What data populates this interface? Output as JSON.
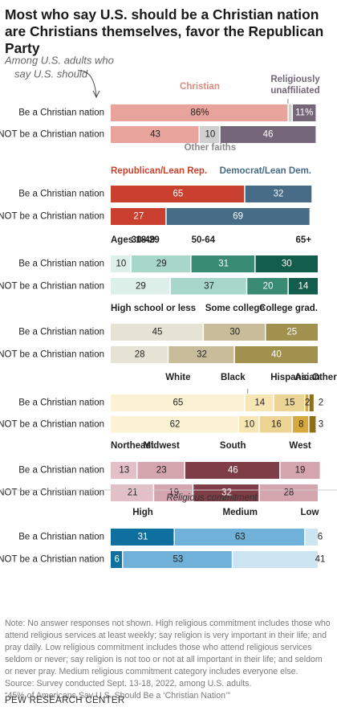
{
  "title": "Most who say U.S. should be a Christian nation are Christians themselves, favor the Republican Party",
  "chart_data": {
    "type": "bar",
    "orientation": "horizontal",
    "stacked": true,
    "units": "percent",
    "annotation": "Among U.S. adults who say U.S. should",
    "categories": [
      "Be a Christian nation",
      "NOT be a Christian nation"
    ],
    "panels": [
      {
        "id": "religion",
        "series": [
          {
            "name": "Christian",
            "color": "#e8a49c",
            "values": [
              86,
              43
            ]
          },
          {
            "name": "Other faiths",
            "color": "#cfcfcf",
            "values": [
              2,
              10
            ]
          },
          {
            "name": "Religiously unaffiliated",
            "color": "#756779",
            "values": [
              11,
              46
            ]
          }
        ]
      },
      {
        "id": "party",
        "series": [
          {
            "name": "Republican/Lean Rep.",
            "color": "#c9412e",
            "values": [
              65,
              27
            ]
          },
          {
            "name": "Democrat/Lean Dem.",
            "color": "#476c88",
            "values": [
              32,
              69
            ]
          }
        ]
      },
      {
        "id": "age",
        "series": [
          {
            "name": "Ages 18-29",
            "color": "#dcefe9",
            "values": [
              10,
              29
            ]
          },
          {
            "name": "30-49",
            "color": "#a6d7c9",
            "values": [
              29,
              37
            ]
          },
          {
            "name": "50-64",
            "color": "#3a8b74",
            "values": [
              31,
              20
            ]
          },
          {
            "name": "65+",
            "color": "#125d4c",
            "values": [
              30,
              14
            ]
          }
        ]
      },
      {
        "id": "education",
        "series": [
          {
            "name": "High school or less",
            "color": "#e6e2d4",
            "values": [
              45,
              28
            ]
          },
          {
            "name": "Some college",
            "color": "#c9bc9a",
            "values": [
              30,
              32
            ]
          },
          {
            "name": "College grad.",
            "color": "#a0924e",
            "values": [
              25,
              40
            ]
          }
        ]
      },
      {
        "id": "race",
        "series": [
          {
            "name": "White",
            "color": "#fbf1d3",
            "values": [
              65,
              62
            ]
          },
          {
            "name": "Black",
            "color": "#f7e6b4",
            "values": [
              14,
              10
            ]
          },
          {
            "name": "Hispanic",
            "color": "#ecd594",
            "values": [
              15,
              16
            ]
          },
          {
            "name": "Asian",
            "color": "#d7a93b",
            "values": [
              2,
              8
            ]
          },
          {
            "name": "Other",
            "color": "#8f6f1c",
            "values": [
              2,
              3
            ]
          }
        ]
      },
      {
        "id": "region",
        "series": [
          {
            "name": "Northeast",
            "color": "#e3c0c7",
            "values": [
              13,
              21
            ]
          },
          {
            "name": "Midwest",
            "color": "#d5a5ad",
            "values": [
              23,
              19
            ]
          },
          {
            "name": "South",
            "color": "#7f3d47",
            "values": [
              46,
              32
            ]
          },
          {
            "name": "West",
            "color": "#d5a5ad",
            "values": [
              19,
              28
            ]
          }
        ]
      },
      {
        "id": "commitment",
        "title": "Religious commitment",
        "series": [
          {
            "name": "High",
            "color": "#0f6f9e",
            "values": [
              31,
              6
            ]
          },
          {
            "name": "Medium",
            "color": "#6fb1d9",
            "values": [
              63,
              53
            ]
          },
          {
            "name": "Low",
            "color": "#cde4f3",
            "values": [
              6,
              41
            ]
          }
        ]
      }
    ]
  },
  "notes": [
    "Note: No answer responses not shown. High religious commitment includes those who attend religious services at least weekly; say religion is very important in their life; and pray daily. Low religious commitment includes those who attend religious services seldom or never; say religion is not too or not at all important in their life; and seldom or never pray. Medium religious commitment category includes everyone else.",
    "Source: Survey conducted Sept. 13-18, 2022, among U.S. adults.",
    "“45% of Americans Say U.S. Should Be a ‘Christian Nation’”"
  ],
  "brand": "PEW RESEARCH CENTER"
}
